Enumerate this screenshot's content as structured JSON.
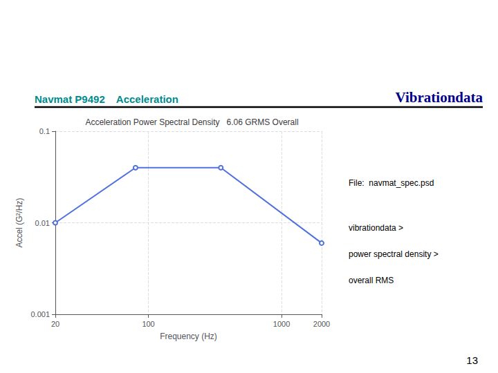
{
  "chart_data": {
    "type": "line",
    "title": "Acceleration Power Spectral Density   6.06 GRMS Overall",
    "xlabel": "Frequency (Hz)",
    "ylabel": "Accel (G²/Hz)",
    "x": [
      20,
      80,
      350,
      2000
    ],
    "values": [
      0.01,
      0.04,
      0.04,
      0.006
    ],
    "xlim": [
      20,
      2000
    ],
    "ylim": [
      0.001,
      0.1
    ],
    "xticks": [
      20,
      100,
      1000,
      2000
    ],
    "yticks": [
      0.001,
      0.01,
      0.1
    ],
    "log": true,
    "grid": true,
    "annotations": [
      "Navmat P9492    Acceleration",
      "Vibrationdata",
      "File:  navmat_spec.psd",
      "vibrationdata >",
      "power spectral density >",
      "overall RMS",
      "13"
    ]
  }
}
